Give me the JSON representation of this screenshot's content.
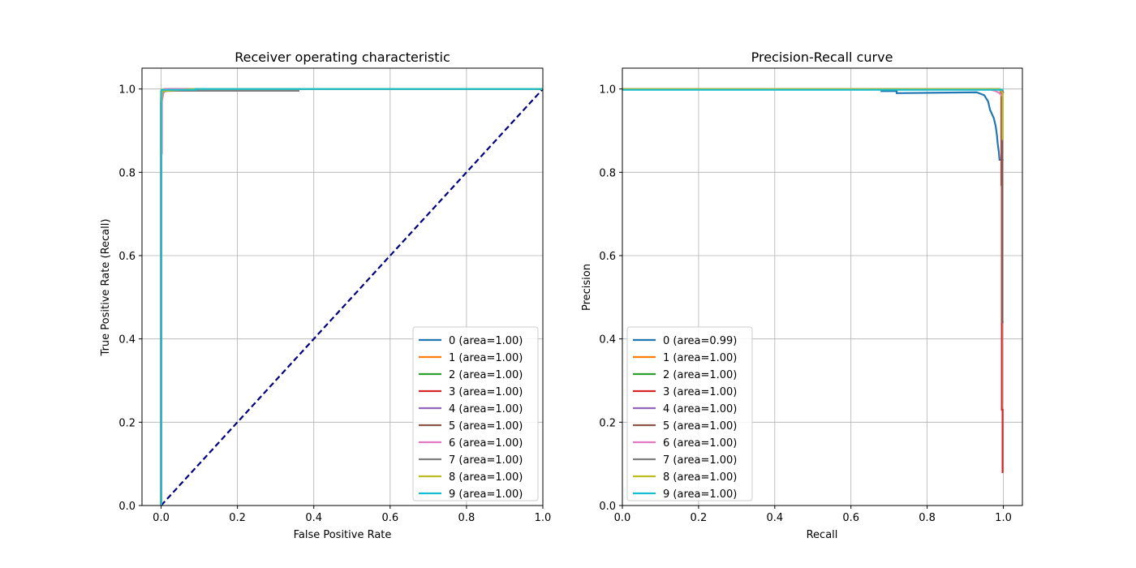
{
  "colors": [
    "#1f77b4",
    "#ff7f0e",
    "#2ca02c",
    "#d62728",
    "#9467bd",
    "#8c564b",
    "#e377c2",
    "#7f7f7f",
    "#bcbd22",
    "#17becf"
  ],
  "chart_data": [
    {
      "type": "line",
      "title": "Receiver operating characteristic",
      "xlabel": "False Positive Rate",
      "ylabel": "True Positive Rate (Recall)",
      "xlim": [
        -0.05,
        1.0
      ],
      "ylim": [
        0.0,
        1.05
      ],
      "xticks": [
        0.0,
        0.2,
        0.4,
        0.6,
        0.8,
        1.0
      ],
      "yticks": [
        0.0,
        0.2,
        0.4,
        0.6,
        0.8,
        1.0
      ],
      "tick_labels_x": [
        "0.0",
        "0.2",
        "0.4",
        "0.6",
        "0.8",
        "1.0"
      ],
      "tick_labels_y": [
        "0.0",
        "0.2",
        "0.4",
        "0.6",
        "0.8",
        "1.0"
      ],
      "grid": true,
      "legend_position": "lower right",
      "series": [
        {
          "name": "0 (area=1.00)",
          "x": [
            0,
            0,
            0.002,
            0.005,
            0.01,
            0.05,
            0.3,
            1.0
          ],
          "y": [
            0,
            0.9,
            0.98,
            0.99,
            0.995,
            0.998,
            1.0,
            1.0
          ]
        },
        {
          "name": "1 (area=1.00)",
          "x": [
            0,
            0,
            0.002,
            0.01,
            1.0
          ],
          "y": [
            0,
            0.99,
            0.998,
            1.0,
            1.0
          ]
        },
        {
          "name": "2 (area=1.00)",
          "x": [
            0,
            0,
            0.003,
            0.02,
            1.0
          ],
          "y": [
            0,
            0.98,
            0.995,
            1.0,
            1.0
          ]
        },
        {
          "name": "3 (area=1.00)",
          "x": [
            0,
            0,
            0.003,
            0.03,
            1.0
          ],
          "y": [
            0,
            0.97,
            0.995,
            1.0,
            1.0
          ]
        },
        {
          "name": "4 (area=1.00)",
          "x": [
            0,
            0,
            0.002,
            0.02,
            1.0
          ],
          "y": [
            0,
            0.98,
            0.996,
            1.0,
            1.0
          ]
        },
        {
          "name": "5 (area=1.00)",
          "x": [
            0,
            0,
            0.003,
            0.01,
            0.36,
            0.36,
            1.0
          ],
          "y": [
            0,
            0.97,
            0.99,
            0.996,
            0.996,
            1.0,
            1.0
          ]
        },
        {
          "name": "6 (area=1.00)",
          "x": [
            0,
            0,
            0.002,
            0.002,
            0.006,
            0.01,
            1.0
          ],
          "y": [
            0,
            0.845,
            0.845,
            0.97,
            0.99,
            1.0,
            1.0
          ]
        },
        {
          "name": "7 (area=1.00)",
          "x": [
            0,
            0,
            0.004,
            0.05,
            0.36,
            0.36,
            1.0
          ],
          "y": [
            0,
            0.97,
            0.995,
            0.996,
            0.996,
            1.0,
            1.0
          ]
        },
        {
          "name": "8 (area=1.00)",
          "x": [
            0,
            0,
            0.003,
            0.08,
            1.0
          ],
          "y": [
            0,
            0.96,
            0.995,
            1.0,
            1.0
          ]
        },
        {
          "name": "9 (area=1.00)",
          "x": [
            0,
            0,
            0.001,
            0.09,
            0.09,
            1.0
          ],
          "y": [
            0,
            0.995,
            0.998,
            0.998,
            1.0,
            1.0
          ]
        }
      ],
      "reference_line": {
        "x": [
          0,
          1
        ],
        "y": [
          0,
          1
        ],
        "color": "#000080",
        "style": "dashed"
      }
    },
    {
      "type": "line",
      "title": "Precision-Recall curve",
      "xlabel": "Recall",
      "ylabel": "Precision",
      "xlim": [
        0.0,
        1.05
      ],
      "ylim": [
        0.0,
        1.05
      ],
      "xticks": [
        0.0,
        0.2,
        0.4,
        0.6,
        0.8,
        1.0
      ],
      "yticks": [
        0.0,
        0.2,
        0.4,
        0.6,
        0.8,
        1.0
      ],
      "tick_labels_x": [
        "0.0",
        "0.2",
        "0.4",
        "0.6",
        "0.8",
        "1.0"
      ],
      "tick_labels_y": [
        "0.0",
        "0.2",
        "0.4",
        "0.6",
        "0.8",
        "1.0"
      ],
      "grid": true,
      "legend_position": "lower left",
      "series": [
        {
          "name": "0 (area=0.99)",
          "x": [
            0,
            0.68,
            0.68,
            0.72,
            0.72,
            0.93,
            0.95,
            0.96,
            0.965,
            0.97,
            0.975,
            0.98,
            0.983,
            0.985,
            0.988,
            0.99,
            1.0
          ],
          "y": [
            1.0,
            1.0,
            0.995,
            0.995,
            0.99,
            0.992,
            0.985,
            0.97,
            0.95,
            0.94,
            0.93,
            0.91,
            0.89,
            0.87,
            0.85,
            0.83,
            0.83
          ]
        },
        {
          "name": "1 (area=1.00)",
          "x": [
            0,
            0.97,
            0.99,
            1.0
          ],
          "y": [
            1.0,
            1.0,
            0.998,
            0.995
          ]
        },
        {
          "name": "2 (area=1.00)",
          "x": [
            0,
            0.98,
            0.995,
            1.0
          ],
          "y": [
            1.0,
            1.0,
            0.998,
            0.99
          ]
        },
        {
          "name": "3 (area=1.00)",
          "x": [
            0,
            0.99,
            0.995,
            0.995,
            0.996,
            0.996,
            0.998,
            0.998,
            1.0
          ],
          "y": [
            1.0,
            1.0,
            0.99,
            0.77,
            0.77,
            0.23,
            0.23,
            0.08,
            0.08
          ]
        },
        {
          "name": "4 (area=1.00)",
          "x": [
            0,
            0.99,
            0.998,
            1.0
          ],
          "y": [
            1.0,
            1.0,
            0.995,
            0.99
          ]
        },
        {
          "name": "5 (area=1.00)",
          "x": [
            0,
            0.99,
            0.997,
            0.997,
            1.0
          ],
          "y": [
            1.0,
            1.0,
            0.99,
            0.44,
            0.44
          ]
        },
        {
          "name": "6 (area=1.00)",
          "x": [
            0,
            0.96,
            0.98,
            0.99,
            1.0
          ],
          "y": [
            1.0,
            1.0,
            0.995,
            0.99,
            0.98
          ]
        },
        {
          "name": "7 (area=1.00)",
          "x": [
            0,
            0.99,
            0.998,
            1.0
          ],
          "y": [
            1.0,
            1.0,
            0.996,
            0.99
          ]
        },
        {
          "name": "8 (area=1.00)",
          "x": [
            0,
            0.99,
            0.998,
            0.998,
            1.0
          ],
          "y": [
            1.0,
            1.0,
            0.99,
            0.88,
            0.88
          ]
        },
        {
          "name": "9 (area=1.00)",
          "x": [
            0,
            1.0
          ],
          "y": [
            0.998,
            0.998
          ]
        }
      ]
    }
  ]
}
